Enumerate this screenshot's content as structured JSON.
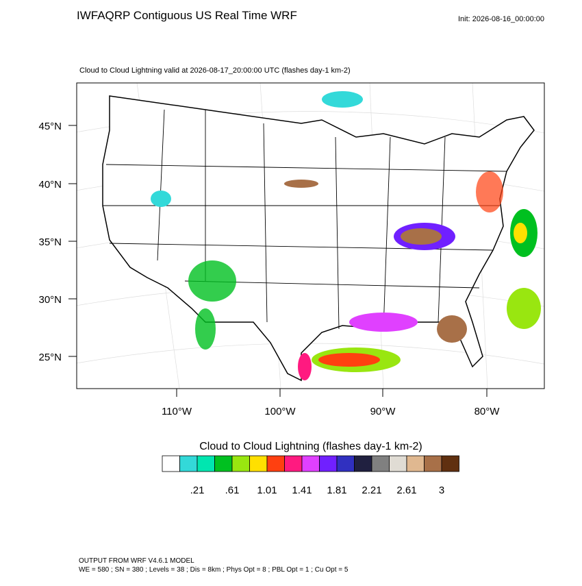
{
  "header": {
    "title": "IWFAQRP Contiguous US Real Time WRF",
    "init": "Init: 2026-08-16_00:00:00"
  },
  "map": {
    "subtitle": "Cloud to Cloud Lightning valid at 2026-08-17_20:00:00 UTC   (flashes day-1 km-2)",
    "lat_labels": [
      "45°N",
      "40°N",
      "35°N",
      "30°N",
      "25°N"
    ],
    "lon_labels": [
      "110°W",
      "100°W",
      "90°W",
      "80°W"
    ]
  },
  "colorbar": {
    "title": "Cloud to Cloud Lightning  (flashes day-1 km-2)",
    "colors": [
      "#ffffff",
      "#33d9d9",
      "#00e6b0",
      "#00c020",
      "#99e610",
      "#ffe000",
      "#ff4010",
      "#ff1a80",
      "#e040ff",
      "#7020ff",
      "#3030c0",
      "#202040",
      "#808080",
      "#e0dcd4",
      "#e0b890",
      "#a87048",
      "#603010"
    ],
    "labels": [
      ".21",
      ".61",
      "1.01",
      "1.41",
      "1.81",
      "2.21",
      "2.61",
      "3"
    ]
  },
  "footer": {
    "lines": [
      "OUTPUT FROM WRF V4.6.1 MODEL",
      "WE = 580 ; SN = 380 ; Levels = 38 ; Dis = 8km ; Phys Opt = 8 ; PBL Opt = 1 ; Cu Opt = 5"
    ]
  }
}
